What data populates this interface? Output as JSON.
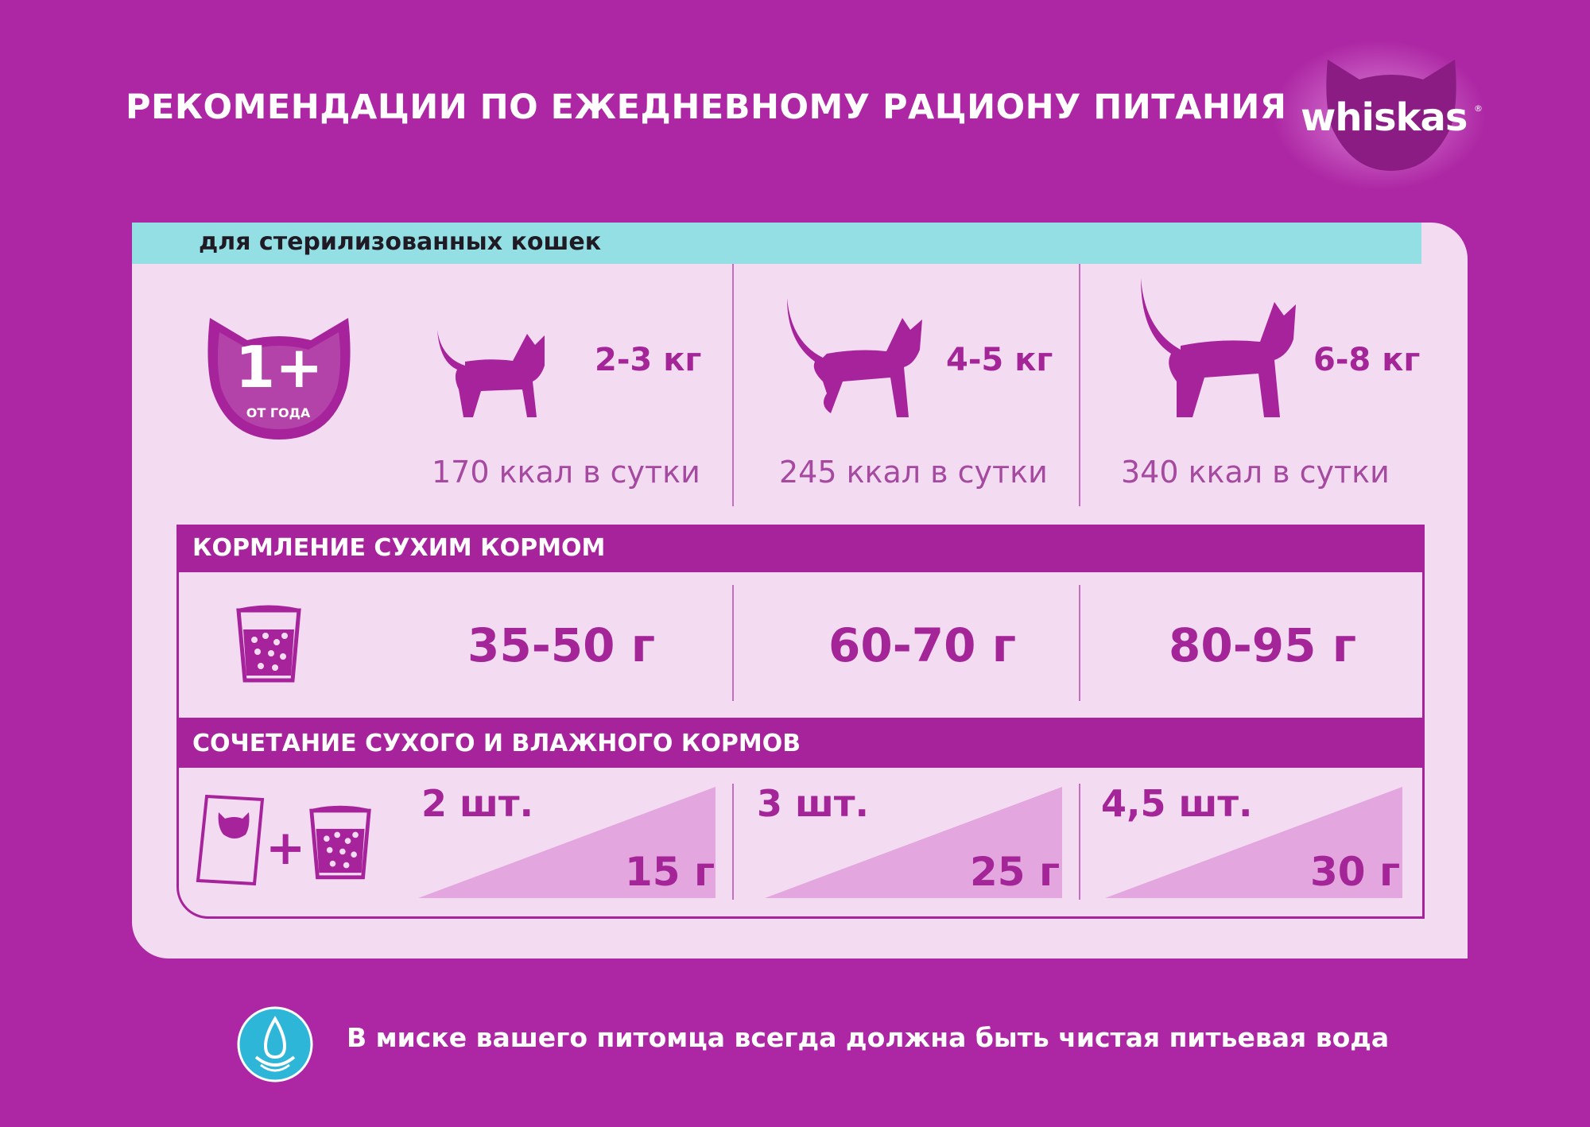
{
  "header": {
    "title": "РЕКОМЕНДАЦИИ ПО ЕЖЕДНЕВНОМУ РАЦИОНУ ПИТАНИЯ",
    "brand": "whiskas",
    "brand_mark": "®"
  },
  "card": {
    "subtitle": "для стерилизованных кошек",
    "age": {
      "value": "1+",
      "label": "ОТ ГОДА"
    },
    "columns": [
      {
        "weight": "2-3 кг",
        "kcal": "170 ккал в сутки"
      },
      {
        "weight": "4-5 кг",
        "kcal": "245 ккал в сутки"
      },
      {
        "weight": "6-8 кг",
        "kcal": "340 ккал в сутки"
      }
    ],
    "dry": {
      "heading": "КОРМЛЕНИЕ СУХИМ КОРМОМ",
      "values": [
        "35-50 г",
        "60-70 г",
        "80-95 г"
      ]
    },
    "mixed": {
      "heading": "СОЧЕТАНИЕ СУХОГО И ВЛАЖНОГО КОРМОВ",
      "plus": "+",
      "values": [
        {
          "pieces": "2 шт.",
          "grams": "15 г"
        },
        {
          "pieces": "3 шт.",
          "grams": "25 г"
        },
        {
          "pieces": "4,5 шт.",
          "grams": "30 г"
        }
      ]
    }
  },
  "footer": {
    "note": "В миске вашего питомца всегда должна быть чистая питьевая вода",
    "icon": "water-drop-icon"
  },
  "colors": {
    "background": "#ad27a4",
    "card": "#f3dcf1",
    "band": "#93dfe4",
    "accent": "#a7239b",
    "water": "#2eb6d8"
  }
}
